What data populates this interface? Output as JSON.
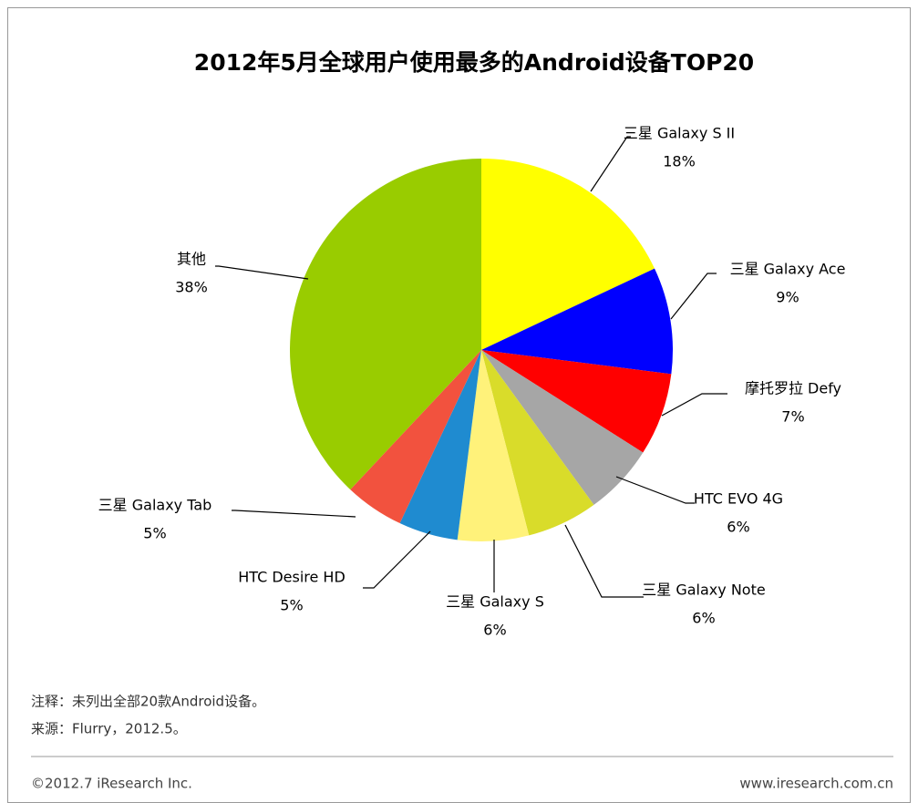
{
  "chart_data": {
    "type": "pie",
    "title": "2012年5月全球用户使用最多的Android设备TOP20",
    "categories": [
      "三星 Galaxy S II",
      "三星 Galaxy Ace",
      "摩托罗拉 Defy",
      "HTC EVO 4G",
      "三星 Galaxy Note",
      "三星 Galaxy S",
      "HTC Desire HD",
      "三星 Galaxy Tab",
      "其他"
    ],
    "values": [
      18,
      9,
      7,
      6,
      6,
      6,
      5,
      5,
      38
    ],
    "value_labels": [
      "18%",
      "9%",
      "7%",
      "6%",
      "6%",
      "6%",
      "5%",
      "5%",
      "38%"
    ],
    "colors": [
      "#ffff00",
      "#0000ff",
      "#ff0000",
      "#a6a6a6",
      "#d9dc2a",
      "#fff27a",
      "#1f8bd0",
      "#f2523e",
      "#99cc00"
    ]
  },
  "notes": [
    "注释：未列出全部20款Android设备。",
    "来源：Flurry，2012.5。"
  ],
  "footer": {
    "copyright": "©2012.7 iResearch Inc.",
    "website": "www.iresearch.com.cn"
  }
}
